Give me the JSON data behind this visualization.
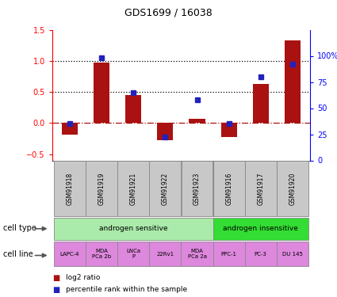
{
  "title": "GDS1699 / 16038",
  "samples": [
    "GSM91918",
    "GSM91919",
    "GSM91921",
    "GSM91922",
    "GSM91923",
    "GSM91916",
    "GSM91917",
    "GSM91920"
  ],
  "log2_ratio": [
    -0.18,
    0.97,
    0.45,
    -0.28,
    0.07,
    -0.22,
    0.63,
    1.33
  ],
  "percentile_rank": [
    0.35,
    0.98,
    0.65,
    0.22,
    0.58,
    0.35,
    0.8,
    0.92
  ],
  "cell_type_groups": [
    {
      "label": "androgen sensitive",
      "start": 0,
      "end": 5,
      "color": "#aaeaaa"
    },
    {
      "label": "androgen insensitive",
      "start": 5,
      "end": 8,
      "color": "#33dd33"
    }
  ],
  "cell_lines": [
    {
      "label": "LAPC-4",
      "start": 0,
      "end": 1
    },
    {
      "label": "MDA\nPCa 2b",
      "start": 1,
      "end": 2
    },
    {
      "label": "LNCa\nP",
      "start": 2,
      "end": 3
    },
    {
      "label": "22Rv1",
      "start": 3,
      "end": 4
    },
    {
      "label": "MDA\nPCa 2a",
      "start": 4,
      "end": 5
    },
    {
      "label": "PPC-1",
      "start": 5,
      "end": 6
    },
    {
      "label": "PC-3",
      "start": 6,
      "end": 7
    },
    {
      "label": "DU 145",
      "start": 7,
      "end": 8
    }
  ],
  "cell_line_color": "#dd88dd",
  "bar_color": "#aa1111",
  "dot_color": "#2222bb",
  "ylim_left": [
    -0.6,
    1.5
  ],
  "ylim_right": [
    0.0,
    1.25
  ],
  "yticks_left": [
    -0.5,
    0.0,
    0.5,
    1.0,
    1.5
  ],
  "yticks_right": [
    0.0,
    0.25,
    0.5,
    0.75,
    1.0
  ],
  "ytick_labels_right": [
    "0",
    "25",
    "50",
    "75",
    "100%"
  ],
  "hlines": [
    0.5,
    1.0
  ],
  "zero_line": 0.0,
  "sample_bg_color": "#c8c8c8",
  "legend_items": [
    {
      "label": "log2 ratio",
      "color": "#aa1111"
    },
    {
      "label": "percentile rank within the sample",
      "color": "#2222bb"
    }
  ]
}
